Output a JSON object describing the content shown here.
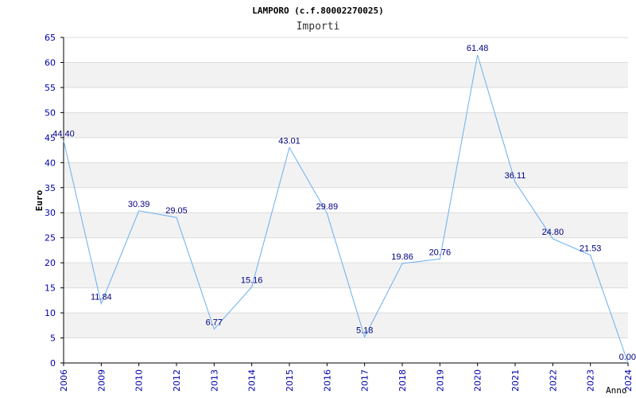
{
  "chart_data": {
    "type": "line",
    "title": "LAMPORO (c.f.80002270025)",
    "subtitle": "Importi",
    "xlabel": "Anno",
    "ylabel": "Euro",
    "categories": [
      "2006",
      "2009",
      "2010",
      "2012",
      "2013",
      "2014",
      "2015",
      "2016",
      "2017",
      "2018",
      "2019",
      "2020",
      "2021",
      "2022",
      "2023",
      "2024"
    ],
    "series": [
      {
        "name": "Importi",
        "values": [
          44.4,
          11.84,
          30.39,
          29.05,
          6.77,
          15.16,
          43.01,
          29.89,
          5.18,
          19.86,
          20.76,
          61.48,
          36.11,
          24.8,
          21.53,
          0.0
        ],
        "labels": [
          "44.40",
          "11.84",
          "30.39",
          "29.05",
          "6.77",
          "15.16",
          "43.01",
          "29.89",
          "5.18",
          "19.86",
          "20.76",
          "61.48",
          "36.11",
          "24.80",
          "21.53",
          "0.00"
        ]
      }
    ],
    "ylim": [
      0,
      65
    ],
    "yticks": [
      "0",
      "5",
      "10",
      "15",
      "20",
      "25",
      "30",
      "35",
      "40",
      "45",
      "50",
      "55",
      "60",
      "65"
    ],
    "grid": true,
    "colors": {
      "line": "#6aaef0",
      "band": "#f2f2f2",
      "gridline": "#dcdcdc",
      "axis": "#000000",
      "tick_text": "#0000aa",
      "data_label": "#000080"
    }
  }
}
